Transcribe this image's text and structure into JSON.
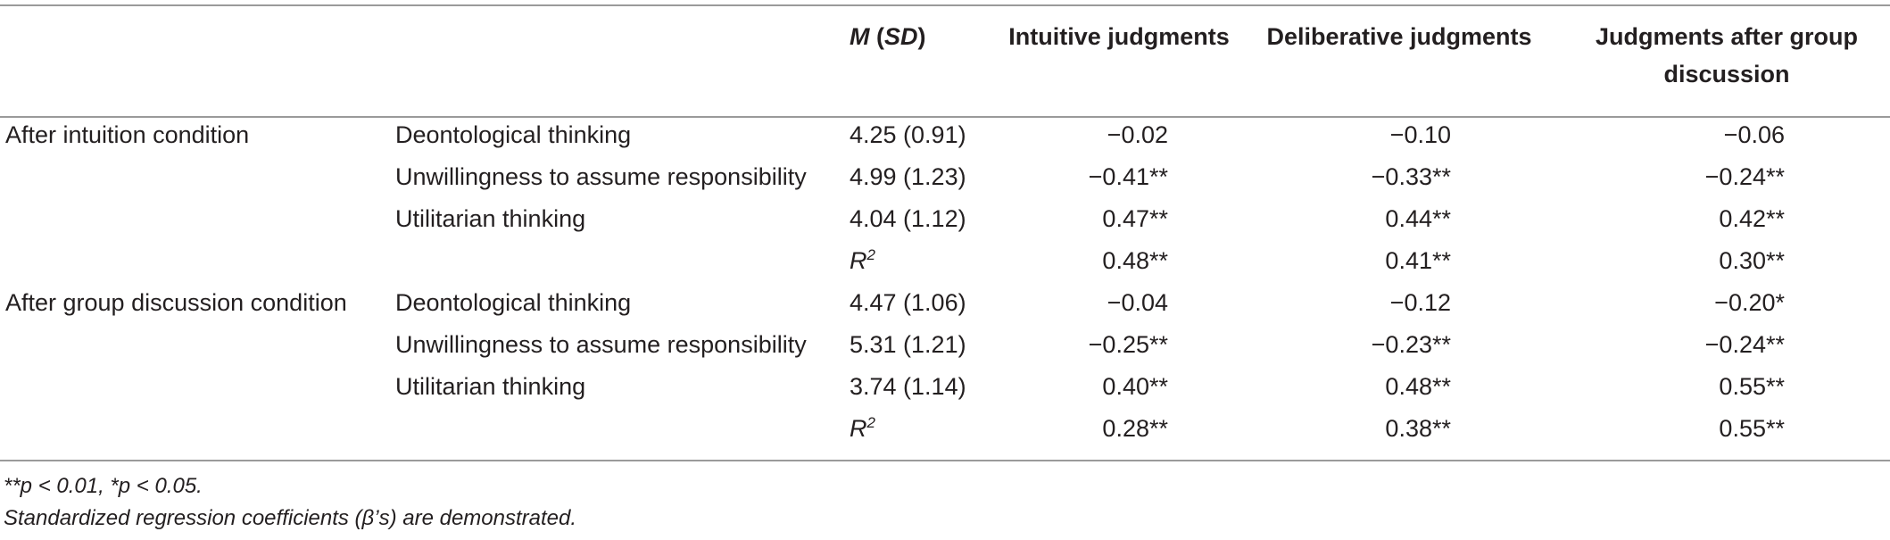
{
  "header": {
    "msd_m": "M",
    "msd_sd_open": " (",
    "msd_sd": "SD",
    "msd_sd_close": ")",
    "col_intuitive": "Intuitive judgments",
    "col_deliberative": "Deliberative judgments",
    "col_group_line1": "Judgments after group",
    "col_group_line2": "discussion"
  },
  "groups": [
    {
      "label": "After intuition condition",
      "rows": [
        {
          "predictor": "Deontological thinking",
          "msd": "4.25 (0.91)",
          "intuitive": "−0.02",
          "deliberative": "−0.10",
          "group": "−0.06"
        },
        {
          "predictor": "Unwillingness to assume responsibility",
          "msd": "4.99 (1.23)",
          "intuitive": "−0.41**",
          "deliberative": "−0.33**",
          "group": "−0.24**"
        },
        {
          "predictor": "Utilitarian thinking",
          "msd": "4.04 (1.12)",
          "intuitive": "0.47**",
          "deliberative": "0.44**",
          "group": "0.42**"
        },
        {
          "predictor": "",
          "msd_r": "R",
          "msd_r_sup": "2",
          "intuitive": "0.48**",
          "deliberative": "0.41**",
          "group": "0.30**"
        }
      ]
    },
    {
      "label": "After group discussion condition",
      "rows": [
        {
          "predictor": "Deontological thinking",
          "msd": "4.47 (1.06)",
          "intuitive": "−0.04",
          "deliberative": "−0.12",
          "group": "−0.20*"
        },
        {
          "predictor": "Unwillingness to assume responsibility",
          "msd": "5.31 (1.21)",
          "intuitive": "−0.25**",
          "deliberative": "−0.23**",
          "group": "−0.24**"
        },
        {
          "predictor": "Utilitarian thinking",
          "msd": "3.74 (1.14)",
          "intuitive": "0.40**",
          "deliberative": "0.48**",
          "group": "0.55**"
        },
        {
          "predictor": "",
          "msd_r": "R",
          "msd_r_sup": "2",
          "intuitive": "0.28**",
          "deliberative": "0.38**",
          "group": "0.55**"
        }
      ]
    }
  ],
  "footnotes": {
    "significance": "**p < 0.01, *p < 0.05.",
    "note": "Standardized regression coefficients (β’s) are demonstrated."
  }
}
